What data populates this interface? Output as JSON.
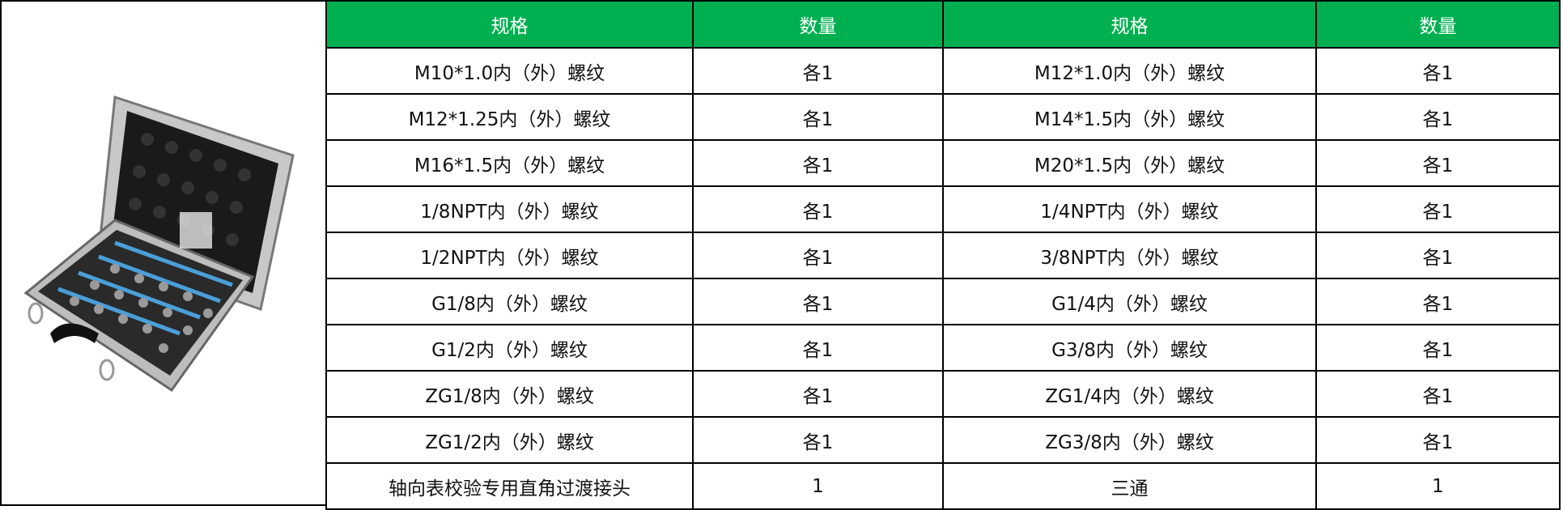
{
  "product_image": {
    "alt": "aluminum case with thread adapters"
  },
  "colors": {
    "header_bg": "#00b050",
    "header_text": "#ffffff"
  },
  "table": {
    "headers": [
      "规格",
      "数量",
      "规格",
      "数量"
    ],
    "rows": [
      [
        "M10*1.0内（外）螺纹",
        "各1",
        "M12*1.0内（外）螺纹",
        "各1"
      ],
      [
        "M12*1.25内（外）螺纹",
        "各1",
        "M14*1.5内（外）螺纹",
        "各1"
      ],
      [
        "M16*1.5内（外）螺纹",
        "各1",
        "M20*1.5内（外）螺纹",
        "各1"
      ],
      [
        "1/8NPT内（外）螺纹",
        "各1",
        "1/4NPT内（外）螺纹",
        "各1"
      ],
      [
        "1/2NPT内（外）螺纹",
        "各1",
        "3/8NPT内（外）螺纹",
        "各1"
      ],
      [
        "G1/8内（外）螺纹",
        "各1",
        "G1/4内（外）螺纹",
        "各1"
      ],
      [
        "G1/2内（外）螺纹",
        "各1",
        "G3/8内（外）螺纹",
        "各1"
      ],
      [
        "ZG1/8内（外）螺纹",
        "各1",
        "ZG1/4内（外）螺纹",
        "各1"
      ],
      [
        "ZG1/2内（外）螺纹",
        "各1",
        "ZG3/8内（外）螺纹",
        "各1"
      ],
      [
        "轴向表校验专用直角过渡接头",
        "1",
        "三通",
        "1"
      ]
    ]
  }
}
